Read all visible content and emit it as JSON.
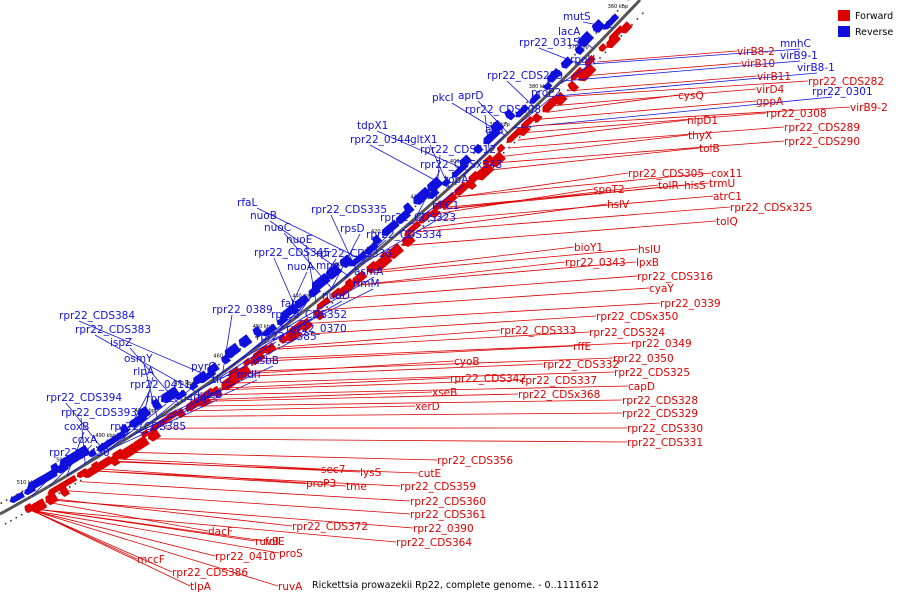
{
  "caption": "Rickettsia prowazekii Rp22, complete genome. - 0..1111612",
  "legend": {
    "forward_label": "Forward",
    "reverse_label": "Reverse",
    "forward_color": "#dd0000",
    "reverse_color": "#1010dd"
  },
  "ticks": [
    "510 kbp",
    "500 kbp",
    "490 kbp",
    "480 kbp",
    "470 kbp",
    "460 kbp",
    "450 kbp",
    "440 kbp",
    "430 kbp",
    "420 kbp",
    "410 kbp",
    "400 kbp",
    "390 kbp",
    "380 kbp",
    "370 kbp",
    "360 kbp"
  ],
  "reverse_labels": [
    "mutS",
    "lacA",
    "rpr22_0315",
    "rpoH",
    "rpr22_CDS299",
    "proP2",
    "aprD",
    "pkcI",
    "rpr22_CDS308",
    "asd",
    "rpr22_CDS312",
    "tdpX1",
    "rpr22_0344",
    "gltX1",
    "rpr22_CDSx343",
    "topA",
    "hflC1",
    "rpr22_CDS335",
    "rpr22_CDS323",
    "rfaL",
    "nuoB",
    "nuoC",
    "nuoE",
    "rpsD",
    "rpr22_CDS334",
    "rpr22_CDS345",
    "nuoA",
    "mpg",
    "rpr22_CDS336",
    "asmA",
    "rimM",
    "nuoD",
    "fabI",
    "rpr22_0389",
    "rpr22_CDS352",
    "rpr22_0370",
    "rpr22_0385",
    "dsbB",
    "pyrG",
    "mdh",
    "tlc2",
    "kdsB",
    "rpr22_CDS384",
    "rpr22_CDS383",
    "ispZ",
    "osmY",
    "rlpA",
    "rpr22_0411",
    "rpr22_0404",
    "rpr22_CDS394",
    "rpr22_CDS393",
    "rpr22_CDS385",
    "coxB",
    "coxA",
    "rpr22_0430",
    "mnhC",
    "virB9-1",
    "virB8-1",
    "rpr22_0301"
  ],
  "forward_labels": [
    "virB8-2",
    "virB10",
    "virB11",
    "virD4",
    "gppA",
    "rpr22_CDS282",
    "virB9-2",
    "cysQ",
    "rpr22_0308",
    "rpr22_CDS289",
    "rpr22_CDS290",
    "nlpD1",
    "thyX",
    "tolB",
    "rpr22_CDS305",
    "cox11",
    "trmU",
    "hisS",
    "spoT2",
    "tolR",
    "atrC1",
    "rpr22_CDSx325",
    "tolQ",
    "hslV",
    "bioY1",
    "hslU",
    "rpr22_0343",
    "lpxB",
    "rpr22_CDS316",
    "cyaY",
    "rpr22_0339",
    "rpr22_CDSx350",
    "rpr22_CDS333",
    "rpr22_CDS324",
    "rffE",
    "rpr22_0349",
    "rpr22_CDS332",
    "rpr22_0350",
    "rpr22_CDS325",
    "cyoB",
    "rpr22_CDS342",
    "rpr22_CDS337",
    "capD",
    "xseB",
    "rpr22_CDSx368",
    "rpr22_CDS328",
    "xerD",
    "rpr22_CDS329",
    "rpr22_CDS330",
    "rpr22_CDS331",
    "rpr22_CDS356",
    "sec7",
    "lysS",
    "cutE",
    "proP3",
    "tme",
    "rpr22_CDS359",
    "rpr22_CDS360",
    "rpr22_CDS361",
    "rpr22_0390",
    "rpr22_CDS364",
    "rpr22_CDS372",
    "dacF",
    "ruvB",
    "folE",
    "proS",
    "rpr22_0410",
    "mccF",
    "rpr22_CDS386",
    "ruvA",
    "tlpA"
  ]
}
